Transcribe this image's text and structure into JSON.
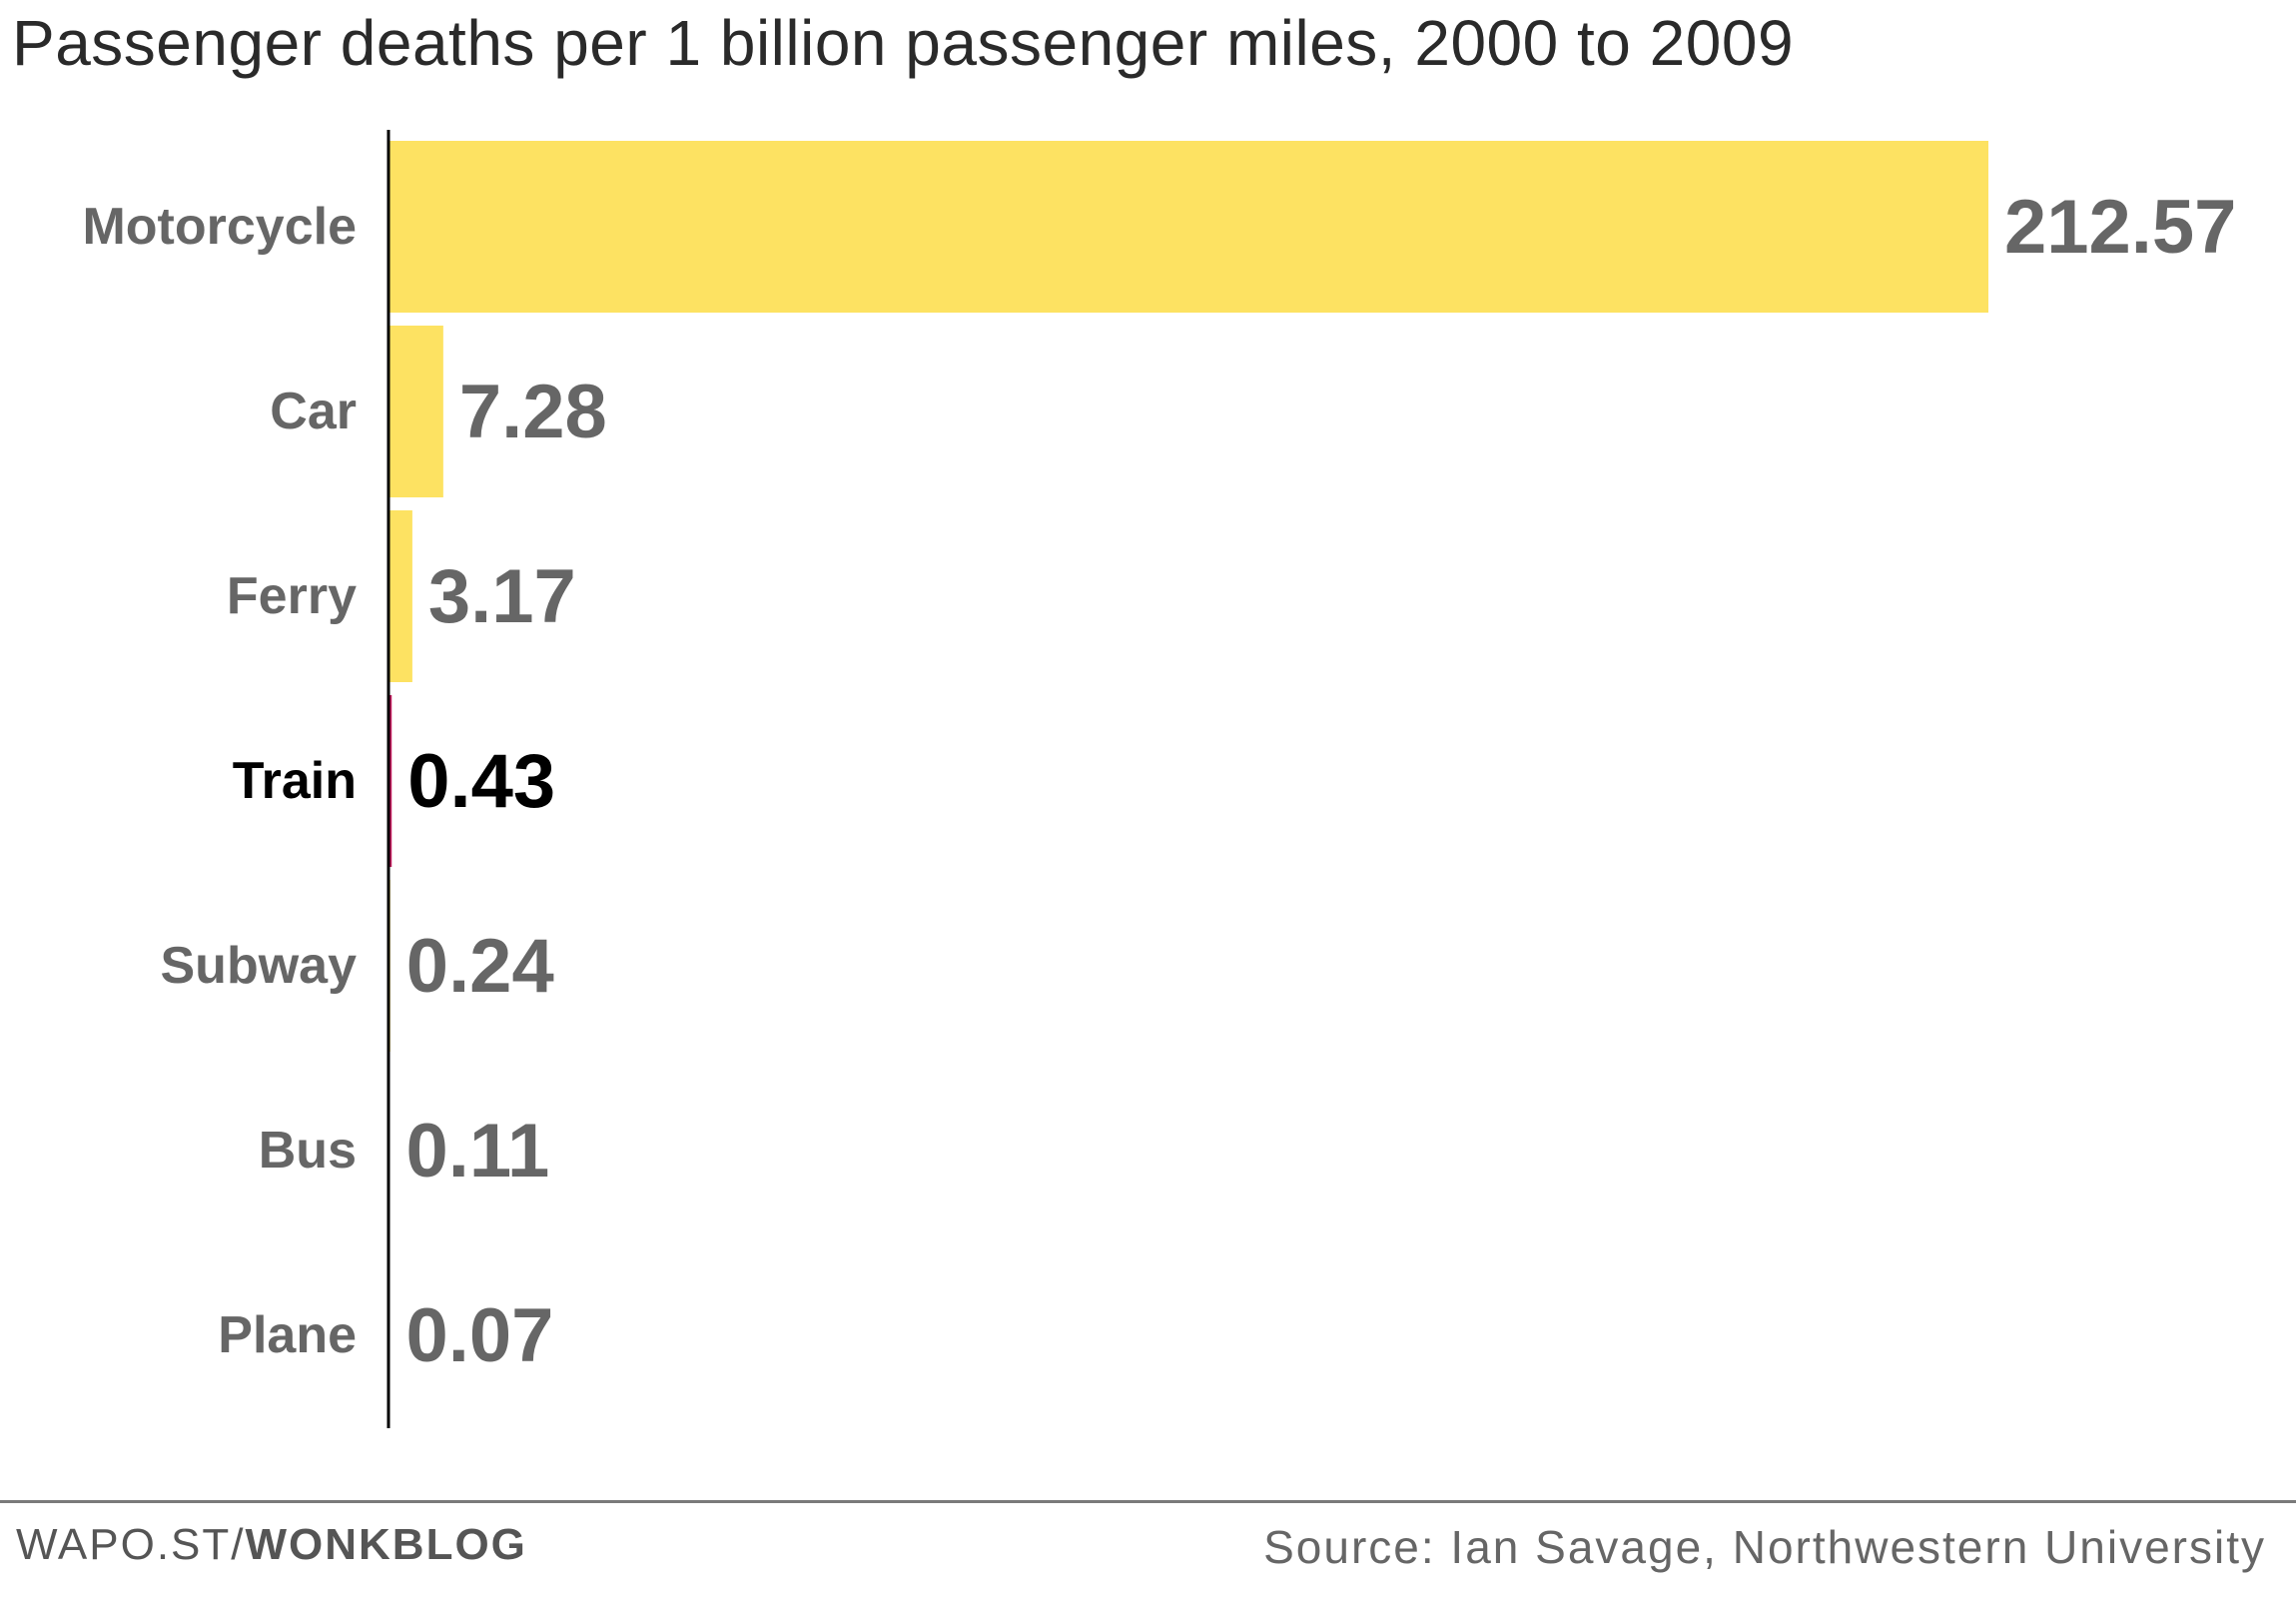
{
  "title": "Passenger deaths per 1 billion passenger miles, 2000 to 2009",
  "footer": {
    "credit_prefix": "WAPO.ST/",
    "credit_emphasis": "WONKBLOG",
    "source": "Source: Ian Savage, Northwestern University"
  },
  "colors": {
    "bar": "#fde262",
    "highlight_bar": "#c2185b",
    "label": "#666666",
    "highlight_label": "#000000",
    "axis": "#000000"
  },
  "chart_data": {
    "type": "bar",
    "orientation": "horizontal",
    "title": "Passenger deaths per 1 billion passenger miles, 2000 to 2009",
    "categories": [
      "Motorcycle",
      "Car",
      "Ferry",
      "Train",
      "Subway",
      "Bus",
      "Plane"
    ],
    "values": [
      212.57,
      7.28,
      3.17,
      0.43,
      0.24,
      0.11,
      0.07
    ],
    "value_labels": [
      "212.57",
      "7.28",
      "3.17",
      "0.43",
      "0.24",
      "0.11",
      "0.07"
    ],
    "highlight": "Train",
    "xlim": [
      0,
      212.57
    ],
    "grid": false,
    "legend": "none"
  }
}
